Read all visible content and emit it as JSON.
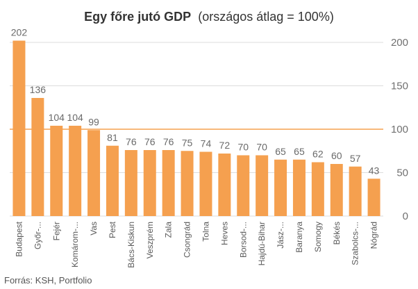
{
  "chart_data": {
    "type": "bar",
    "title_bold": "Egy főre jutó GDP",
    "title_rest": "(országos átlag = 100%)",
    "categories": [
      "Budapest",
      "Győr-...",
      "Fejér",
      "Komárom-...",
      "Vas",
      "Pest",
      "Bács-Kiskun",
      "Veszprém",
      "Zala",
      "Csongrád",
      "Tolna",
      "Heves",
      "Borsod-...",
      "Hajdú-Bihar",
      "Jász-...",
      "Baranya",
      "Somogy",
      "Békés",
      "Szabolcs-...",
      "Nógrád"
    ],
    "values": [
      202,
      136,
      104,
      104,
      99,
      81,
      76,
      76,
      76,
      75,
      74,
      72,
      70,
      70,
      65,
      65,
      62,
      60,
      57,
      43
    ],
    "ylim": [
      0,
      200
    ],
    "yticks": [
      0,
      50,
      100,
      150,
      200
    ],
    "reference_line": 100,
    "axis_side": "right",
    "gridlines": true,
    "colors": {
      "bar": "#f5a04f",
      "reference": "#f5a04f",
      "grid": "#dcdcdc"
    }
  },
  "source": "Forrás: KSH, Portfolio"
}
